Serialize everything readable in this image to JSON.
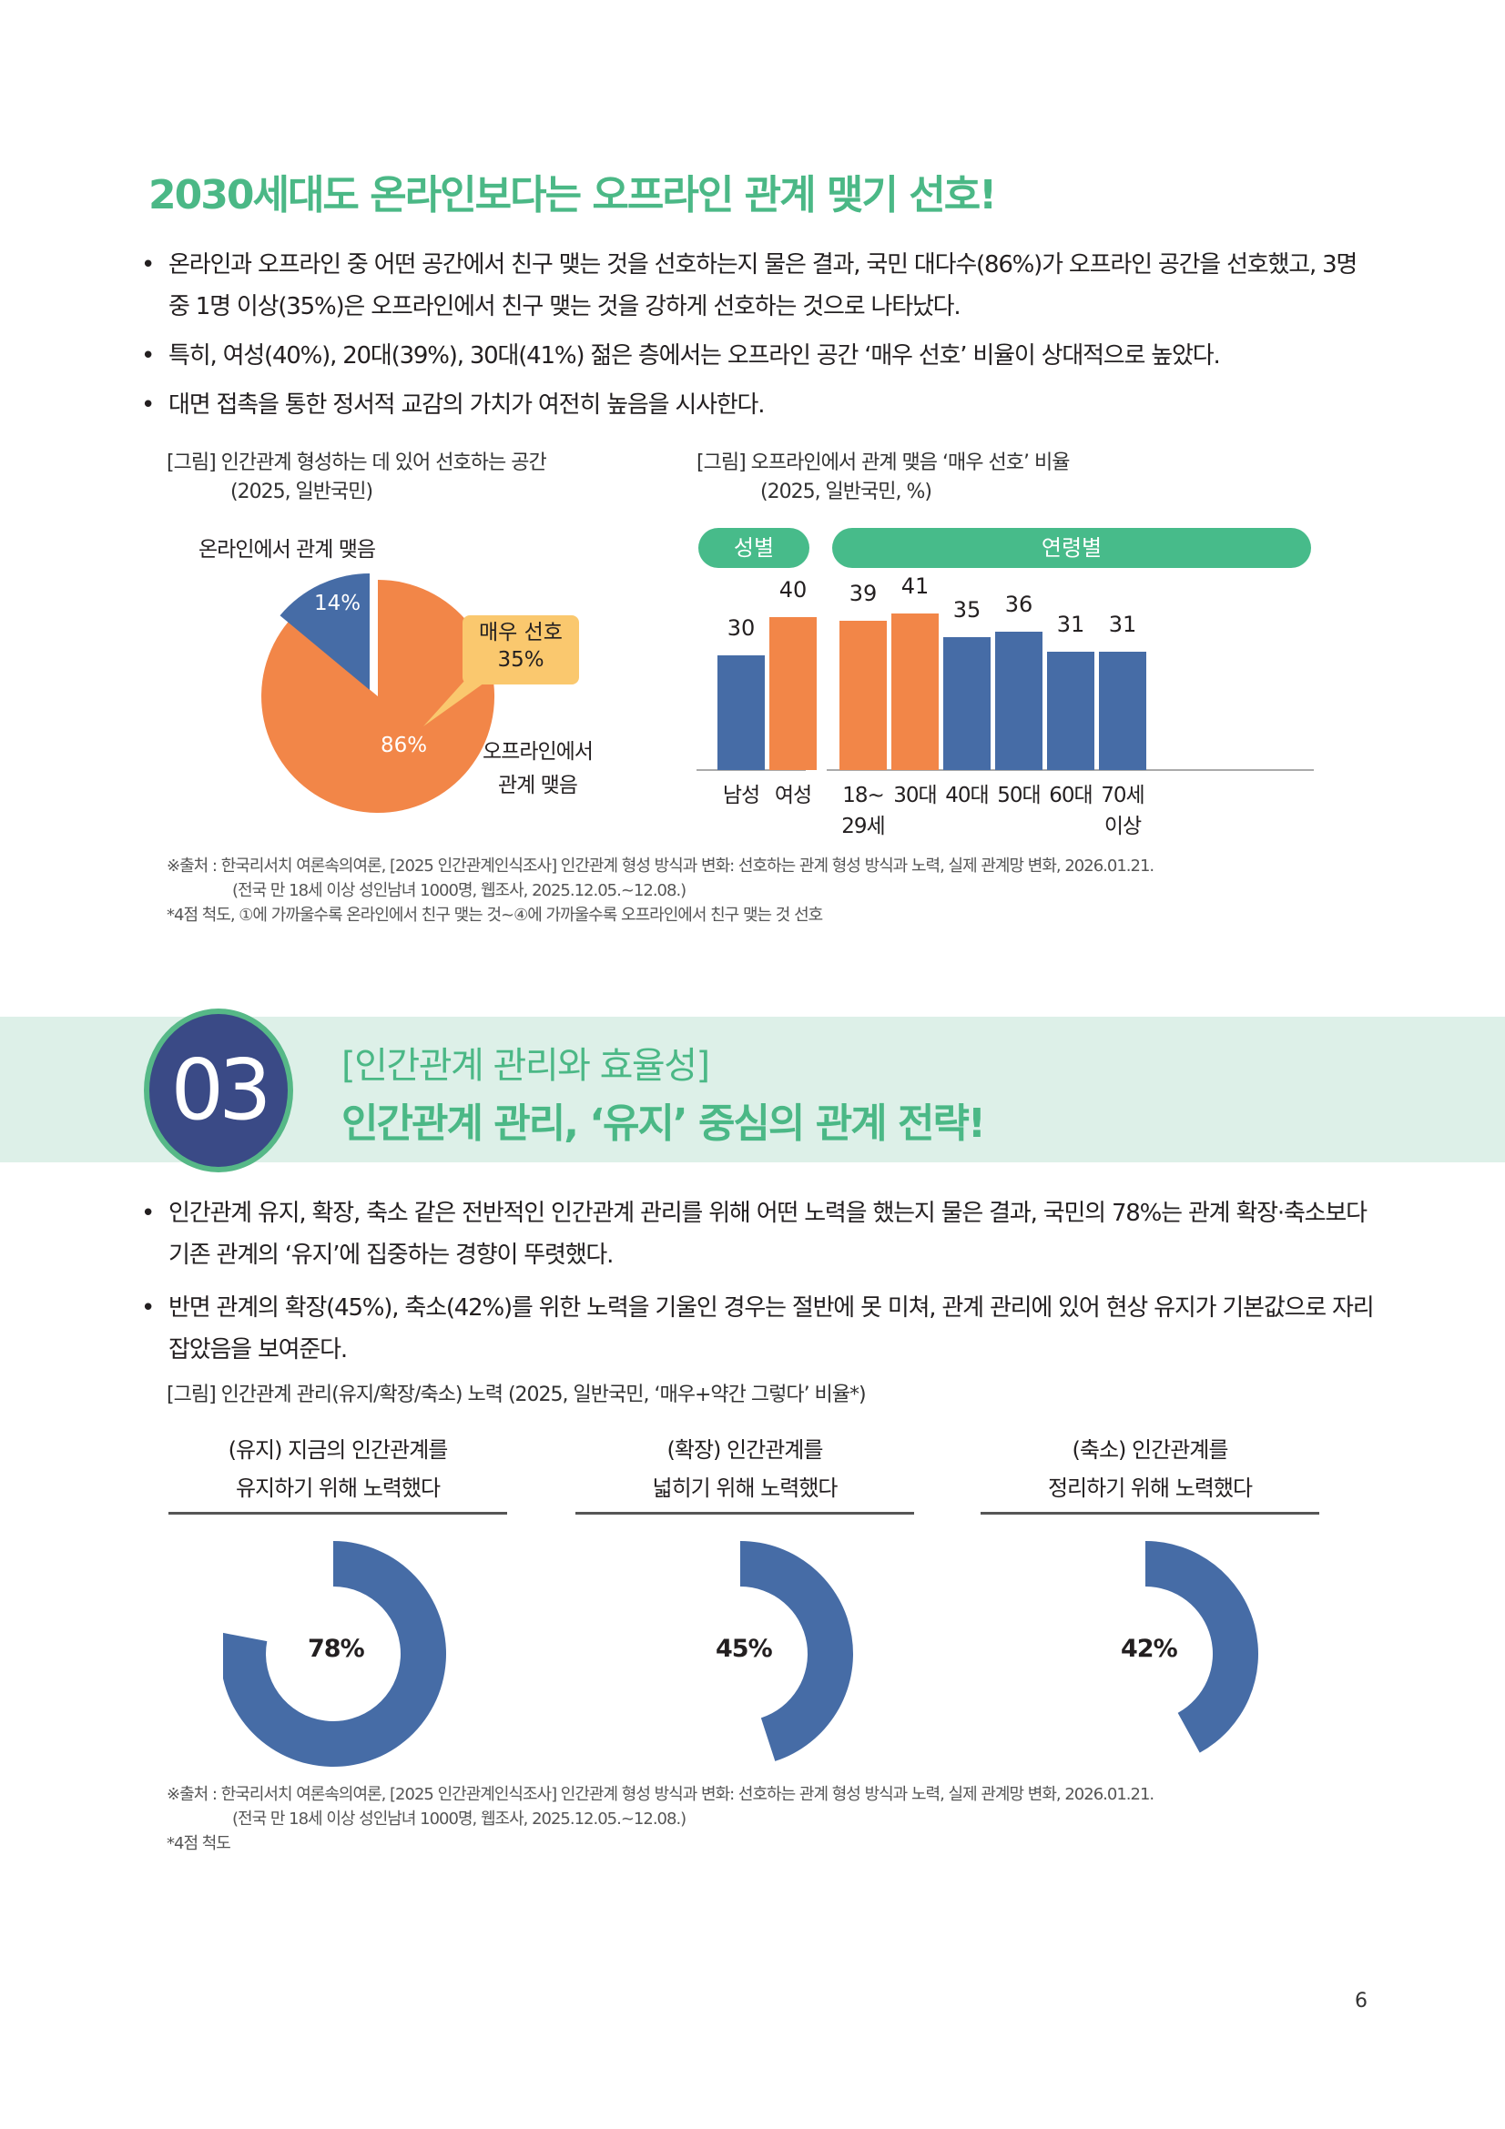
{
  "section1": {
    "title": "2030세대도 온라인보다는 오프라인 관계 맺기 선호!",
    "bullets": [
      "온라인과 오프라인 중 어떤 공간에서 친구 맺는 것을 선호하는지 물은 결과, 국민 대다수(86%)가 오프라인 공간을 선호했고, 3명 중 1명 이상(35%)은 오프라인에서 친구 맺는 것을 강하게 선호하는 것으로 나타났다.",
      "특히, 여성(40%), 20대(39%), 30대(41%) 젊은 층에서는 오프라인 공간 ‘매우 선호’ 비율이 상대적으로 높았다.",
      "대면 접촉을 통한 정서적 교감의 가치가 여전히 높음을 시사한다."
    ],
    "figure1": {
      "title": "[그림] 인간관계 형성하는 데 있어 선호하는 공간",
      "subtitle": "(2025, 일반국민)",
      "online_label": "온라인에서 관계 맺음",
      "online_value": "14%",
      "offline_label_line1": "오프라인에서",
      "offline_label_line2": "관계 맺음",
      "offline_value": "86%",
      "callout_line1": "매우 선호",
      "callout_line2": "35%"
    },
    "figure2": {
      "title": "[그림] 오프라인에서 관계 맺음 ‘매우 선호’ 비율",
      "subtitle": "(2025, 일반국민, %)",
      "group_gender": "성별",
      "group_age": "연령별",
      "bars": [
        {
          "label1": "남성",
          "label2": "",
          "value": "30"
        },
        {
          "label1": "여성",
          "label2": "",
          "value": "40"
        },
        {
          "label1": "18~",
          "label2": "29세",
          "value": "39"
        },
        {
          "label1": "30대",
          "label2": "",
          "value": "41"
        },
        {
          "label1": "40대",
          "label2": "",
          "value": "35"
        },
        {
          "label1": "50대",
          "label2": "",
          "value": "36"
        },
        {
          "label1": "60대",
          "label2": "",
          "value": "31"
        },
        {
          "label1": "70세",
          "label2": "이상",
          "value": "31"
        }
      ]
    },
    "source_line1": "※출처 : 한국리서치 여론속의여론, [2025 인간관계인식조사] 인간관계 형성 방식과 변화: 선호하는 관계 형성 방식과 노력, 실제 관계망 변화, 2026.01.21.",
    "source_line2": "(전국 만 18세 이상 성인남녀 1000명, 웹조사, 2025.12.05.~12.08.)",
    "note": "*4점 척도, ①에 가까울수록 온라인에서 친구 맺는 것~④에 가까울수록 오프라인에서 친구 맺는 것 선호"
  },
  "section3": {
    "number": "03",
    "subtitle": "[인간관계 관리와 효율성]",
    "title": "인간관계 관리, ‘유지’ 중심의 관계 전략!",
    "bullets": [
      "인간관계 유지, 확장, 축소 같은 전반적인 인간관계 관리를 위해 어떤 노력을 했는지 물은 결과, 국민의 78%는 관계 확장·축소보다 기존 관계의 ‘유지’에 집중하는 경향이 뚜렷했다.",
      "반면 관계의 확장(45%), 축소(42%)를 위한 노력을 기울인 경우는 절반에 못 미쳐, 관계 관리에 있어 현상 유지가 기본값으로 자리 잡았음을 보여준다."
    ],
    "figure": {
      "title": "[그림] 인간관계 관리(유지/확장/축소) 노력 (2025, 일반국민, ‘매우+약간 그렇다’ 비율*)",
      "donuts": [
        {
          "line1": "(유지) 지금의 인간관계를",
          "line2": "유지하기 위해 노력했다",
          "value": "78%"
        },
        {
          "line1": "(확장) 인간관계를",
          "line2": "넓히기 위해 노력했다",
          "value": "45%"
        },
        {
          "line1": "(축소) 인간관계를",
          "line2": "정리하기 위해 노력했다",
          "value": "42%"
        }
      ]
    },
    "source_line1": "※출처 : 한국리서치 여론속의여론, [2025 인간관계인식조사] 인간관계 형성 방식과 변화: 선호하는 관계 형성 방식과 노력, 실제 관계망 변화, 2026.01.21.",
    "source_line2": "(전국 만 18세 이상 성인남녀 1000명, 웹조사, 2025.12.05.~12.08.)",
    "note": "*4점 척도"
  },
  "page_number": "6",
  "colors": {
    "accent_green": "#4bb886",
    "pill_green": "#47bb8a",
    "bar_blue": "#466ca6",
    "bar_orange": "#f28648",
    "callout_yellow": "#fac86e",
    "badge_navy": "#3a4a86",
    "band_mint": "#ddf0e8"
  },
  "chart_data": [
    {
      "type": "pie",
      "title": "[그림] 인간관계 형성하는 데 있어 선호하는 공간 (2025, 일반국민)",
      "categories": [
        "온라인에서 관계 맺음",
        "오프라인에서 관계 맺음"
      ],
      "values": [
        14,
        86
      ],
      "annotations": [
        "매우 선호 35% (오프라인 내)"
      ]
    },
    {
      "type": "bar",
      "title": "[그림] 오프라인에서 관계 맺음 ‘매우 선호’ 비율 (2025, 일반국민, %)",
      "groups": [
        {
          "name": "성별",
          "categories": [
            "남성",
            "여성"
          ],
          "values": [
            30,
            40
          ]
        },
        {
          "name": "연령별",
          "categories": [
            "18~29세",
            "30대",
            "40대",
            "50대",
            "60대",
            "70세 이상"
          ],
          "values": [
            39,
            41,
            35,
            36,
            31,
            31
          ]
        }
      ],
      "categories": [
        "남성",
        "여성",
        "18~29세",
        "30대",
        "40대",
        "50대",
        "60대",
        "70세 이상"
      ],
      "values": [
        30,
        40,
        39,
        41,
        35,
        36,
        31,
        31
      ],
      "highlighted": [
        "여성",
        "18~29세",
        "30대"
      ],
      "xlabel": "",
      "ylabel": "%",
      "ylim": [
        0,
        50
      ],
      "grid": false
    },
    {
      "type": "pie",
      "subtype": "donut",
      "title": "[그림] 인간관계 관리(유지/확장/축소) 노력 (2025, 일반국민, ‘매우+약간 그렇다’ 비율*)",
      "categories": [
        "유지",
        "확장",
        "축소"
      ],
      "values": [
        78,
        45,
        42
      ]
    }
  ]
}
